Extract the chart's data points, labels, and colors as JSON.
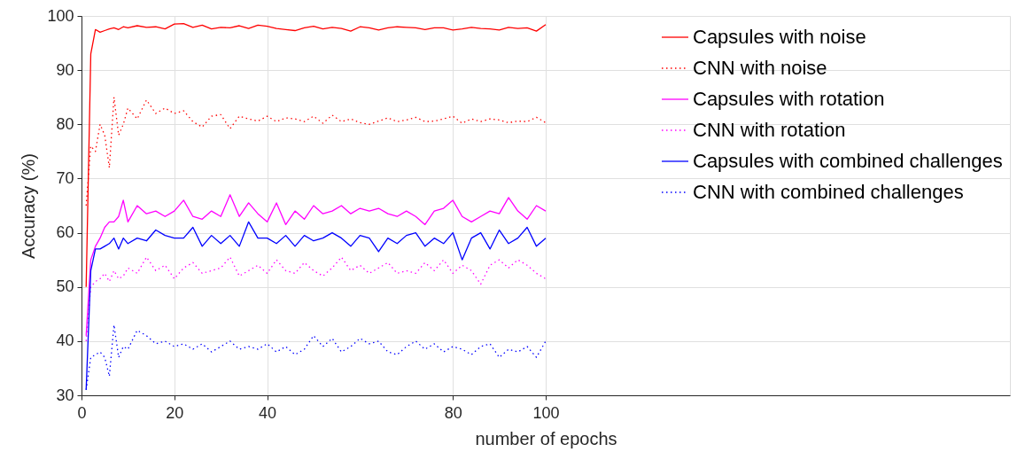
{
  "chart_data": {
    "type": "line",
    "xlabel": "number of epochs",
    "ylabel": "Accuracy (%)",
    "x": [
      1,
      2,
      3,
      4,
      5,
      6,
      7,
      8,
      9,
      10,
      12,
      14,
      16,
      18,
      20,
      22,
      24,
      26,
      28,
      30,
      32,
      34,
      36,
      38,
      40,
      42,
      44,
      46,
      48,
      50,
      52,
      54,
      56,
      58,
      60,
      62,
      64,
      66,
      68,
      70,
      72,
      74,
      76,
      78,
      80,
      82,
      84,
      86,
      88,
      90,
      92,
      94,
      96,
      98,
      100
    ],
    "series": [
      {
        "name": "Capsules with noise",
        "color": "#ff0000",
        "line_style": "solid",
        "values": [
          50,
          93,
          97.5,
          97,
          97.3,
          97.6,
          97.8,
          97.5,
          98,
          97.8,
          98.2,
          97.9,
          98,
          97.6,
          98.5,
          98.6,
          97.9,
          98.3,
          97.6,
          97.9,
          97.8,
          98.2,
          97.7,
          98.3,
          98.1,
          97.7,
          97.5,
          97.3,
          97.8,
          98.1,
          97.6,
          97.9,
          97.7,
          97.2,
          98,
          97.8,
          97.4,
          97.8,
          98,
          97.9,
          97.8,
          97.5,
          97.8,
          97.8,
          97.4,
          97.6,
          97.9,
          97.7,
          97.6,
          97.4,
          97.9,
          97.7,
          97.8,
          97.2,
          98.4
        ]
      },
      {
        "name": "CNN with noise",
        "color": "#ff0000",
        "line_style": "dotted",
        "values": [
          65,
          76,
          75,
          80,
          78,
          72,
          85,
          78,
          80,
          83,
          81,
          84.5,
          82,
          83,
          82,
          82.5,
          80.5,
          79.5,
          81.5,
          81.8,
          79.2,
          81.5,
          81,
          80.6,
          81.5,
          80.5,
          81.2,
          81,
          80.5,
          81.5,
          80.2,
          81.7,
          80.5,
          81,
          80.3,
          80,
          80.6,
          81.2,
          80.5,
          80.8,
          81.3,
          80.5,
          80.6,
          81,
          81.5,
          80.2,
          81,
          80.5,
          81,
          80.8,
          80.3,
          80.6,
          80.5,
          81.3,
          80.3
        ]
      },
      {
        "name": "Capsules with rotation",
        "color": "#ff00ff",
        "line_style": "solid",
        "values": [
          41,
          55,
          57.5,
          59,
          61,
          62,
          62,
          63,
          66,
          62,
          65,
          63.5,
          64,
          63,
          64,
          66,
          63,
          62.5,
          64,
          63,
          67,
          63,
          65.5,
          63.5,
          62,
          65.5,
          61.5,
          64,
          62.5,
          65,
          63.5,
          64,
          65,
          63.5,
          64.5,
          64,
          64.5,
          63.5,
          63,
          64,
          63,
          61.5,
          64,
          64.5,
          66,
          63,
          62,
          63,
          64,
          63.5,
          66.5,
          64,
          62.5,
          65,
          64
        ]
      },
      {
        "name": "CNN with rotation",
        "color": "#ff00ff",
        "line_style": "dotted",
        "values": [
          40,
          50,
          51,
          51.5,
          52.5,
          51,
          53,
          51.5,
          52,
          53.5,
          52.5,
          55.5,
          53,
          54,
          51.5,
          53.5,
          54.5,
          52.5,
          53,
          53.5,
          55.5,
          52,
          53,
          54,
          52.5,
          55,
          53,
          52.5,
          54.5,
          53,
          52,
          53.5,
          55.5,
          53,
          54,
          52.5,
          53.5,
          54.5,
          52.5,
          53,
          52.5,
          54.5,
          53,
          55,
          52.5,
          54,
          53,
          50.5,
          54,
          55,
          53.5,
          55,
          54,
          52.5,
          51.5
        ]
      },
      {
        "name": "Capsules with combined challenges",
        "color": "#0000ff",
        "line_style": "solid",
        "values": [
          31,
          53,
          57,
          57,
          57.5,
          58,
          59,
          57,
          59,
          58,
          59,
          58.5,
          60.5,
          59.5,
          59,
          59,
          61,
          57.5,
          59.5,
          58,
          59.5,
          57.5,
          62,
          59,
          59,
          58,
          59.5,
          57.5,
          59.5,
          58.5,
          59,
          60,
          59,
          57.5,
          59.5,
          59,
          56.5,
          59,
          58,
          59.5,
          60,
          57.5,
          59,
          58,
          60,
          55,
          59,
          60,
          57,
          60.5,
          58,
          59,
          61,
          57.5,
          59
        ]
      },
      {
        "name": "CNN with combined challenges",
        "color": "#0000ff",
        "line_style": "dotted",
        "values": [
          31,
          37,
          37.5,
          38,
          37,
          33.5,
          43,
          37,
          39,
          38.5,
          42,
          41,
          39.5,
          40,
          39,
          39.5,
          38.5,
          39.5,
          38,
          39,
          40,
          38.5,
          39,
          38.5,
          39.5,
          38,
          39,
          37.5,
          38.5,
          41,
          39,
          40.5,
          38,
          39,
          40.5,
          39.5,
          40,
          38,
          37.5,
          39,
          40,
          38.5,
          39.5,
          38,
          39,
          38.5,
          37.5,
          39,
          39.5,
          37,
          38.5,
          38,
          39,
          37,
          40
        ]
      }
    ],
    "xlim": [
      0,
      200
    ],
    "xticks": [
      0,
      20,
      40,
      80,
      100
    ],
    "ylim": [
      30,
      100
    ],
    "yticks": [
      30,
      40,
      50,
      60,
      70,
      80,
      90,
      100
    ],
    "grid": true,
    "legend": "top right",
    "marker": "none"
  }
}
